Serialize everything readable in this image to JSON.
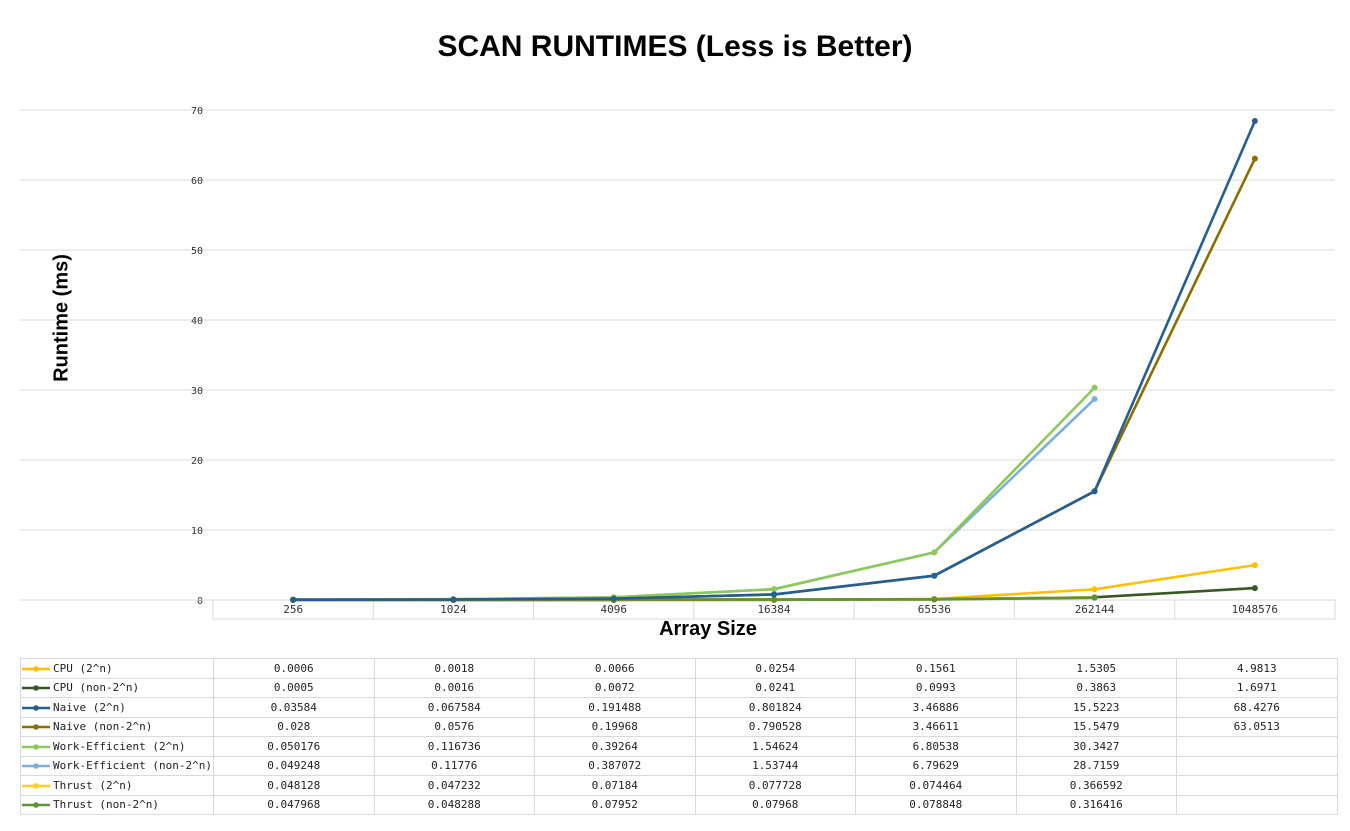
{
  "chart_data": {
    "type": "line",
    "title": "SCAN RUNTIMES (Less is Better)",
    "xlabel": "Array Size",
    "ylabel": "Runtime (ms)",
    "categories": [
      "256",
      "1024",
      "4096",
      "16384",
      "65536",
      "262144",
      "1048576"
    ],
    "ylim": [
      0,
      70
    ],
    "yticks": [
      "0",
      "10",
      "20",
      "30",
      "40",
      "50",
      "60",
      "70"
    ],
    "grid": true,
    "legend": "data-table",
    "series": [
      {
        "name": "CPU (2^n)",
        "color": "#ffc000",
        "values": [
          0.0006,
          0.0018,
          0.0066,
          0.0254,
          0.1561,
          1.5305,
          4.9813
        ],
        "labels": [
          "0.0006",
          "0.0018",
          "0.0066",
          "0.0254",
          "0.1561",
          "1.5305",
          "4.9813"
        ]
      },
      {
        "name": "CPU (non-2^n)",
        "color": "#385723",
        "values": [
          0.0005,
          0.0016,
          0.0072,
          0.0241,
          0.0993,
          0.3863,
          1.6971
        ],
        "labels": [
          "0.0005",
          "0.0016",
          "0.0072",
          "0.0241",
          "0.0993",
          "0.3863",
          "1.6971"
        ]
      },
      {
        "name": "Naive (2^n)",
        "color": "#255e91",
        "values": [
          0.03584,
          0.067584,
          0.191488,
          0.801824,
          3.46886,
          15.5223,
          68.4276
        ],
        "labels": [
          "0.03584",
          "0.067584",
          "0.191488",
          "0.801824",
          "3.46886",
          "15.5223",
          "68.4276"
        ]
      },
      {
        "name": "Naive (non-2^n)",
        "color": "#8c6d00",
        "values": [
          0.028,
          0.0576,
          0.19968,
          0.790528,
          3.46611,
          15.5479,
          63.0513
        ],
        "labels": [
          "0.028",
          "0.0576",
          "0.19968",
          "0.790528",
          "3.46611",
          "15.5479",
          "63.0513"
        ]
      },
      {
        "name": "Work-Efficient (2^n)",
        "color": "#8ec85a",
        "values": [
          0.050176,
          0.116736,
          0.39264,
          1.54624,
          6.80538,
          30.3427,
          null
        ],
        "labels": [
          "0.050176",
          "0.116736",
          "0.39264",
          "1.54624",
          "6.80538",
          "30.3427",
          ""
        ]
      },
      {
        "name": "Work-Efficient (non-2^n)",
        "color": "#7eaedb",
        "values": [
          0.049248,
          0.11776,
          0.387072,
          1.53744,
          6.79629,
          28.7159,
          null
        ],
        "labels": [
          "0.049248",
          "0.11776",
          "0.387072",
          "1.53744",
          "6.79629",
          "28.7159",
          ""
        ]
      },
      {
        "name": "Thrust (2^n)",
        "color": "#ffcd28",
        "values": [
          0.048128,
          0.047232,
          0.07184,
          0.077728,
          0.074464,
          0.366592,
          null
        ],
        "labels": [
          "0.048128",
          "0.047232",
          "0.07184",
          "0.077728",
          "0.074464",
          "0.366592",
          ""
        ]
      },
      {
        "name": "Thrust (non-2^n)",
        "color": "#5e9232",
        "values": [
          0.047968,
          0.048288,
          0.07952,
          0.07968,
          0.078848,
          0.316416,
          null
        ],
        "labels": [
          "0.047968",
          "0.048288",
          "0.07952",
          "0.07968",
          "0.078848",
          "0.316416",
          ""
        ]
      }
    ]
  }
}
